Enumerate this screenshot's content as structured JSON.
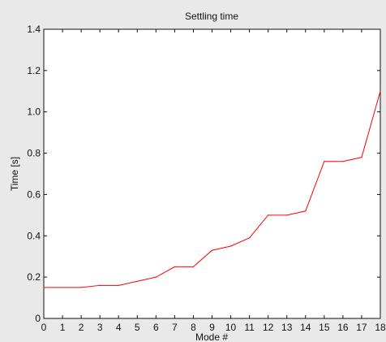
{
  "chart_data": {
    "type": "line",
    "title": "Settling time",
    "xlabel": "Mode #",
    "ylabel": "Time [s]",
    "xlim": [
      0,
      18
    ],
    "ylim": [
      0,
      1.4
    ],
    "grid": false,
    "x_ticks": [
      "0",
      "1",
      "2",
      "3",
      "4",
      "5",
      "6",
      "7",
      "8",
      "9",
      "10",
      "11",
      "12",
      "13",
      "14",
      "15",
      "16",
      "17",
      "18"
    ],
    "y_ticks": [
      "0",
      "0.2",
      "0.4",
      "0.6",
      "0.8",
      "1.0",
      "1.2",
      "1.4"
    ],
    "series": [
      {
        "color": "#ff0000",
        "x": [
          0,
          1,
          2,
          3,
          4,
          5,
          6,
          7,
          8,
          9,
          10,
          11,
          12,
          13,
          14,
          15,
          16,
          17,
          18
        ],
        "y": [
          0.15,
          0.15,
          0.15,
          0.16,
          0.16,
          0.18,
          0.2,
          0.25,
          0.25,
          0.33,
          0.35,
          0.39,
          0.5,
          0.5,
          0.52,
          0.76,
          0.76,
          0.78,
          1.1
        ]
      }
    ]
  },
  "colors": {
    "figure_background": "#e9e9e9",
    "axes_background": "#ffffff",
    "axis_color": "#111111"
  }
}
